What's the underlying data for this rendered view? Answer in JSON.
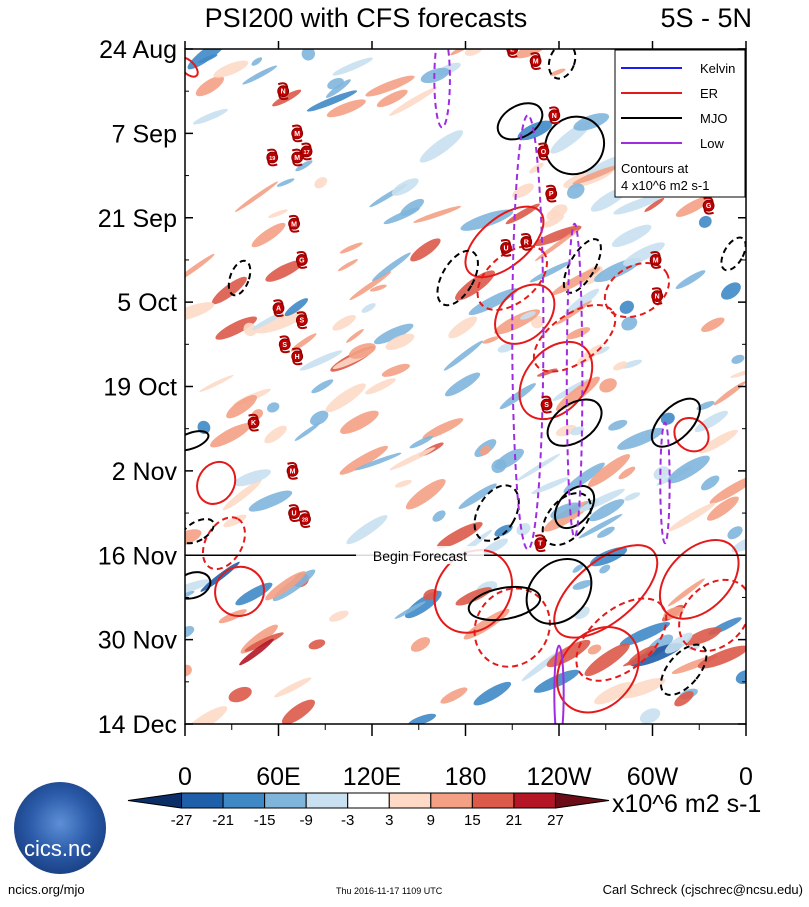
{
  "header": {
    "title": "PSI200 with CFS forecasts",
    "lat_band": "5S - 5N"
  },
  "chart_data": {
    "type": "heatmap",
    "title": "PSI200 with CFS forecasts",
    "subtitle": "5S - 5N",
    "xlabel": "Longitude",
    "ylabel": "Date",
    "x_ticks": [
      "0",
      "60E",
      "120E",
      "180",
      "120W",
      "60W",
      "0"
    ],
    "x_tick_degrees": [
      0,
      60,
      120,
      180,
      240,
      300,
      360
    ],
    "y_ticks": [
      "24 Aug",
      "7 Sep",
      "21 Sep",
      "5 Oct",
      "19 Oct",
      "2 Nov",
      "16 Nov",
      "30 Nov",
      "14 Dec"
    ],
    "y_tick_days": [
      0,
      14,
      28,
      42,
      56,
      70,
      84,
      98,
      112
    ],
    "xlim": [
      0,
      360
    ],
    "ylim_days": [
      0,
      112
    ],
    "forecast_start_day": 84,
    "forecast_label": "Begin Forecast",
    "legend": {
      "placement": "top-right",
      "entries": [
        {
          "label": "Kelvin",
          "color": "#1c1cf0"
        },
        {
          "label": "ER",
          "color": "#e41a1a"
        },
        {
          "label": "MJO",
          "color": "#000000"
        },
        {
          "label": "Low",
          "color": "#a02ce0"
        }
      ],
      "note_line1": "Contours at",
      "note_line2": "4 x10^6 m2 s-1"
    },
    "colorbar": {
      "unit": "x10^6 m2 s-1",
      "tick_labels": [
        "-27",
        "-21",
        "-15",
        "-9",
        "-3",
        "3",
        "9",
        "15",
        "21",
        "27"
      ],
      "colors": [
        "#0b2e68",
        "#1f5ea8",
        "#3f88c6",
        "#7fb5db",
        "#c8e0f0",
        "#ffffff",
        "#fdd9c6",
        "#f3a084",
        "#dc5a4a",
        "#b41626",
        "#6b0c18"
      ]
    },
    "storms": [
      {
        "label": "L",
        "lon": 210,
        "day": 0
      },
      {
        "label": "M",
        "lon": 225,
        "day": 2
      },
      {
        "label": "N",
        "lon": 63,
        "day": 7
      },
      {
        "label": "N",
        "lon": 237,
        "day": 11
      },
      {
        "label": "M",
        "lon": 72,
        "day": 14
      },
      {
        "label": "19",
        "lon": 56,
        "day": 18
      },
      {
        "label": "M",
        "lon": 72,
        "day": 18
      },
      {
        "label": "17",
        "lon": 78,
        "day": 17
      },
      {
        "label": "O",
        "lon": 230,
        "day": 17
      },
      {
        "label": "P",
        "lon": 235,
        "day": 24
      },
      {
        "label": "G",
        "lon": 336,
        "day": 26
      },
      {
        "label": "M",
        "lon": 70,
        "day": 29
      },
      {
        "label": "U",
        "lon": 206,
        "day": 33
      },
      {
        "label": "R",
        "lon": 219,
        "day": 32
      },
      {
        "label": "G",
        "lon": 75,
        "day": 35
      },
      {
        "label": "M",
        "lon": 302,
        "day": 35
      },
      {
        "label": "N",
        "lon": 303,
        "day": 41
      },
      {
        "label": "A",
        "lon": 60,
        "day": 43
      },
      {
        "label": "S",
        "lon": 75,
        "day": 45
      },
      {
        "label": "S",
        "lon": 64,
        "day": 49
      },
      {
        "label": "H",
        "lon": 72,
        "day": 51
      },
      {
        "label": "S",
        "lon": 232,
        "day": 59
      },
      {
        "label": "K",
        "lon": 44,
        "day": 62
      },
      {
        "label": "M",
        "lon": 69,
        "day": 70
      },
      {
        "label": "U",
        "lon": 70,
        "day": 77
      },
      {
        "label": "28",
        "lon": 77,
        "day": 78
      },
      {
        "label": "T",
        "lon": 228,
        "day": 82
      }
    ]
  },
  "colorbar_unit": "x10^6 m2 s-1",
  "logo_text": "cics.nc",
  "credits": {
    "website": "ncics.org/mjo",
    "timestamp": "Thu 2016-11-17 1109 UTC",
    "author": "Carl Schreck (cjschrec@ncsu.edu)"
  }
}
